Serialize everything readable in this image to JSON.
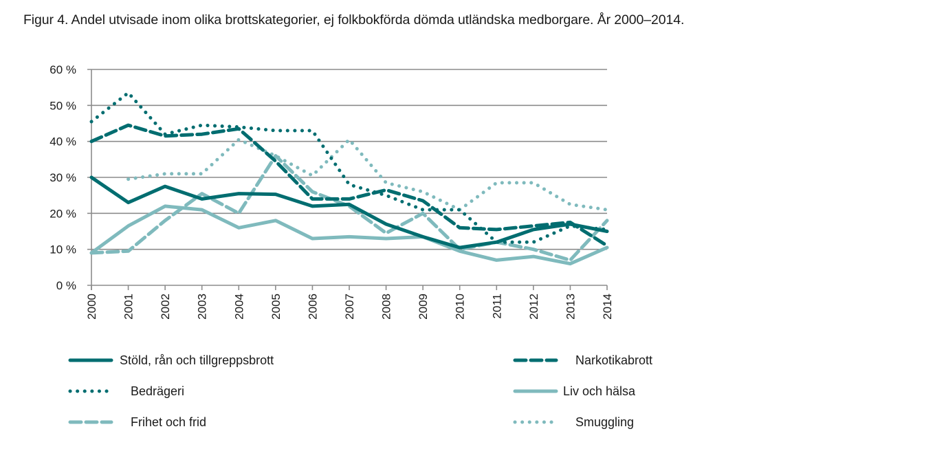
{
  "title": "Figur 4. Andel utvisade inom olika brottskategorier, ej folkbokförda dömda utländska medborgare. År 2000–2014.",
  "chart_data": {
    "type": "line",
    "title": "Figur 4. Andel utvisade inom olika brottskategorier, ej folkbokförda dömda utländska medborgare. År 2000–2014.",
    "xlabel": "",
    "ylabel": "",
    "x": [
      "2000",
      "2001",
      "2002",
      "2003",
      "2004",
      "2005",
      "2006",
      "2007",
      "2008",
      "2009",
      "2010",
      "2011",
      "2012",
      "2013",
      "2014"
    ],
    "ylim": [
      0,
      60
    ],
    "yticks": [
      0,
      10,
      20,
      30,
      40,
      50,
      60
    ],
    "ytick_labels": [
      "0 %",
      "10 %",
      "20 %",
      "30 %",
      "40 %",
      "50 %",
      "60 %"
    ],
    "grid": true,
    "legend_position": "bottom",
    "series": [
      {
        "name": "Stöld, rån och tillgreppsbrott",
        "color": "#006d70",
        "style": "solid",
        "values": [
          30,
          23,
          27.5,
          24,
          25.5,
          25.3,
          22,
          22.5,
          17,
          13.5,
          10.5,
          12,
          15.5,
          17,
          15
        ]
      },
      {
        "name": "Narkotikabrott",
        "color": "#006d70",
        "style": "dashed",
        "values": [
          40,
          44.5,
          41.5,
          42,
          43.5,
          34.5,
          24,
          24,
          26.5,
          23.5,
          16,
          15.5,
          16.5,
          17.5,
          11
        ]
      },
      {
        "name": "Bedrägeri",
        "color": "#006d70",
        "style": "dotted",
        "values": [
          45.5,
          53.5,
          42,
          44.5,
          44,
          43,
          43,
          28,
          25,
          21,
          21,
          12,
          12,
          16.5,
          15.5
        ]
      },
      {
        "name": "Liv och hälsa",
        "color": "#7fbabd",
        "style": "solid",
        "values": [
          9,
          16.5,
          22,
          21,
          16,
          18,
          13,
          13.5,
          13,
          13.5,
          9.5,
          7,
          8,
          6,
          10.5
        ]
      },
      {
        "name": "Frihet och frid",
        "color": "#7fbabd",
        "style": "dashed",
        "values": [
          9,
          9.5,
          18,
          25.5,
          20,
          36,
          26,
          22,
          14.5,
          20,
          10,
          12,
          10,
          7,
          18
        ]
      },
      {
        "name": "Smuggling",
        "color": "#7fbabd",
        "style": "dotted",
        "values": [
          null,
          29.5,
          31,
          31,
          40.5,
          36,
          30.5,
          40.5,
          28.5,
          26,
          21,
          28.5,
          28.5,
          22.5,
          21
        ]
      }
    ]
  }
}
